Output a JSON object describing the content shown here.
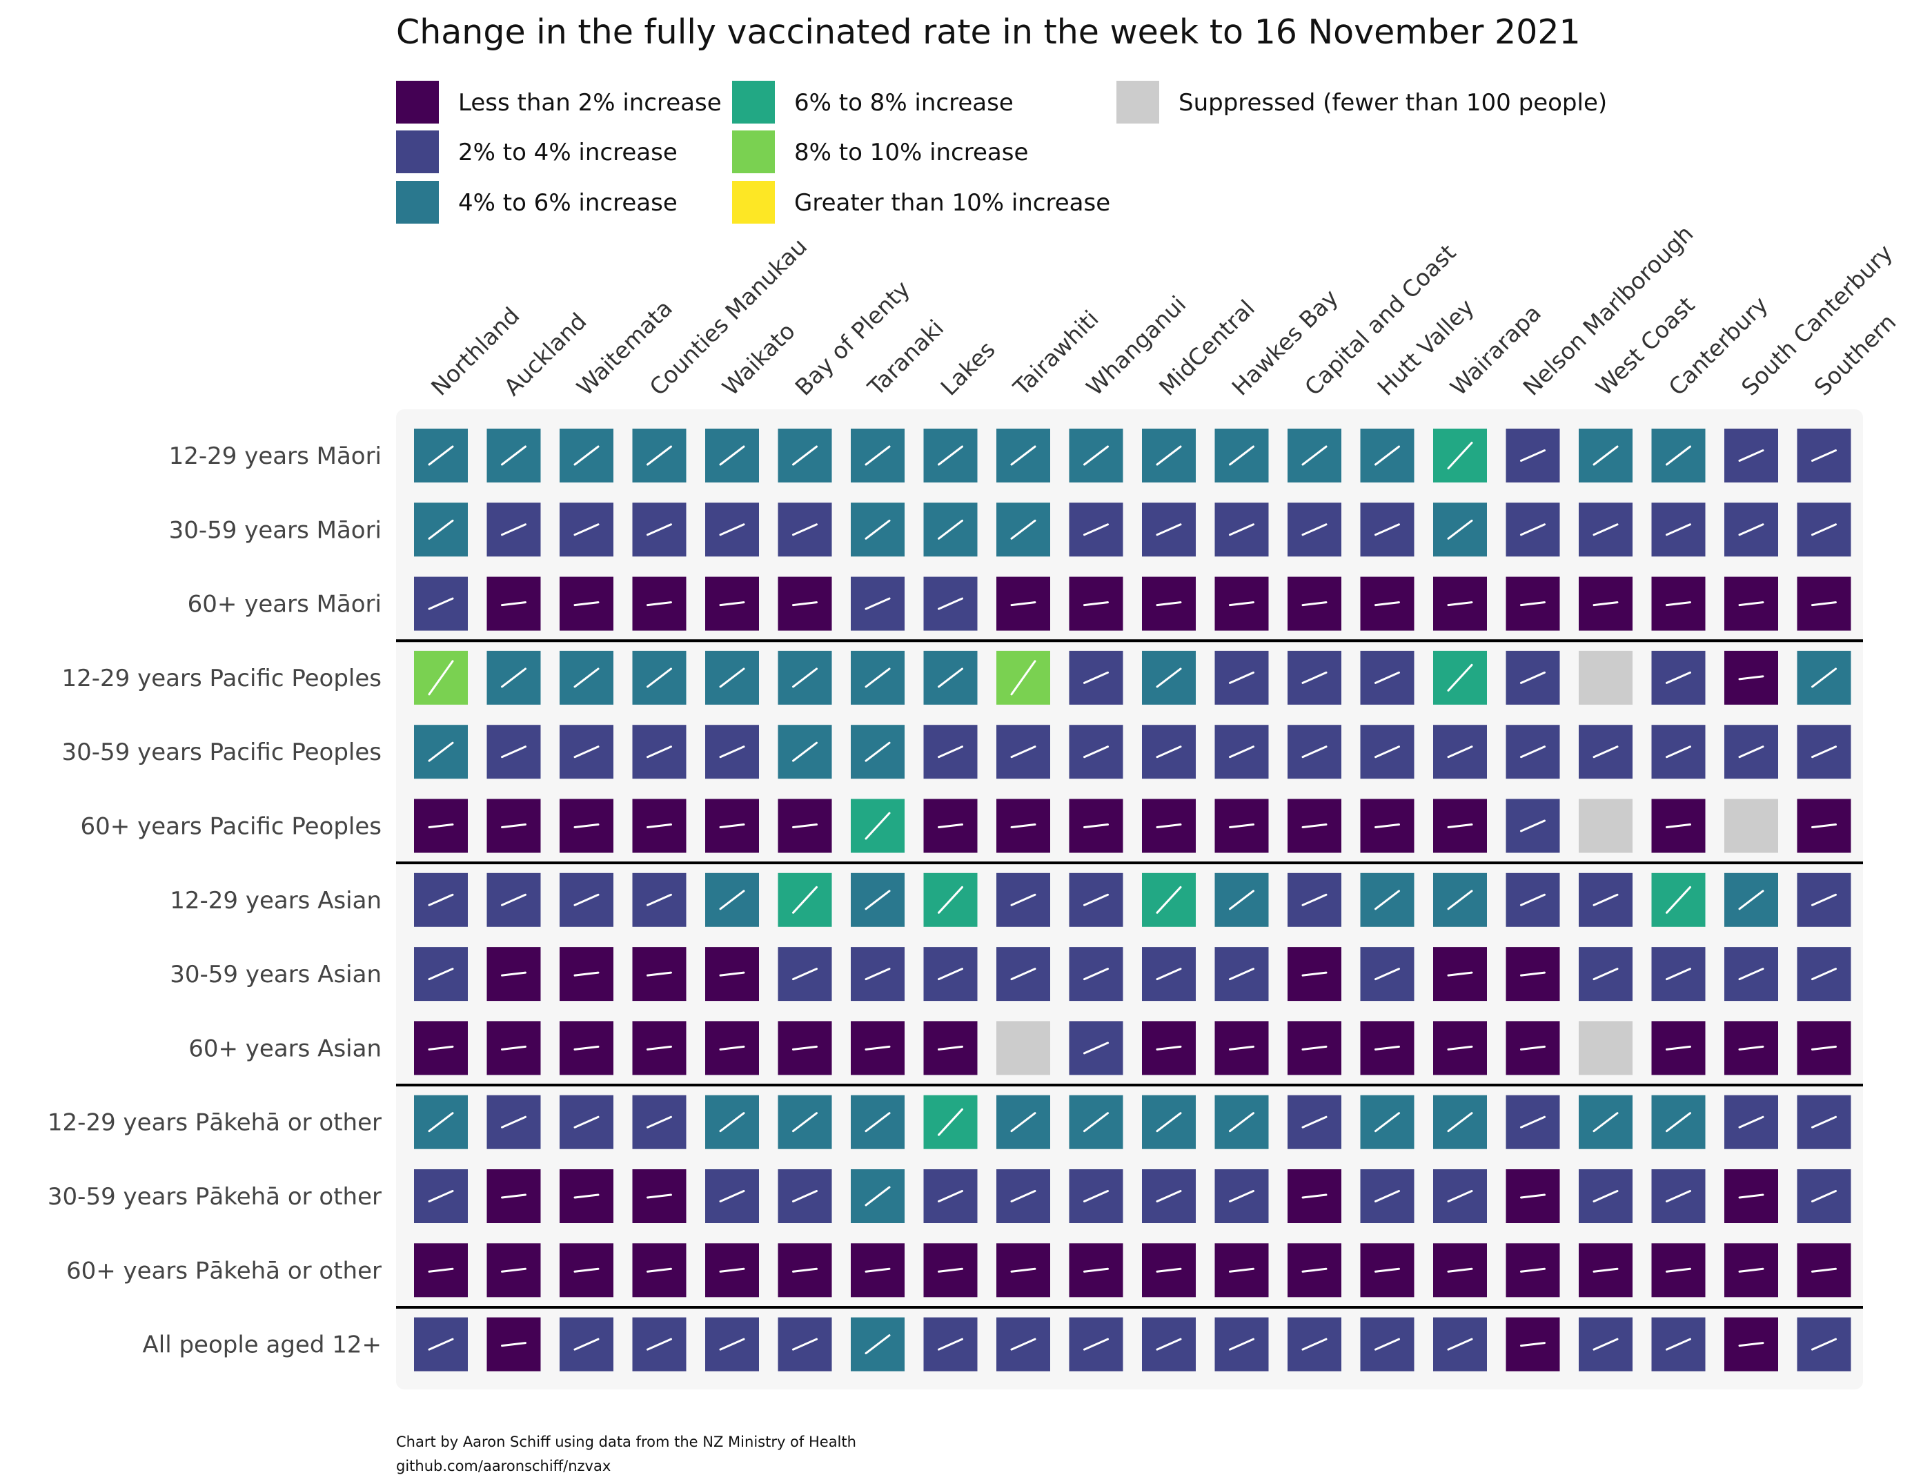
{
  "chart_data": {
    "type": "heatmap",
    "title": "Change in the fully vaccinated rate in the week to 16 November 2021",
    "legend": [
      {
        "code": 0,
        "label": "Less than 2% increase",
        "color": "#440154"
      },
      {
        "code": 1,
        "label": "2% to 4% increase",
        "color": "#414487"
      },
      {
        "code": 2,
        "label": "4% to 6% increase",
        "color": "#2a788e"
      },
      {
        "code": 3,
        "label": "6% to 8% increase",
        "color": "#22a884"
      },
      {
        "code": 4,
        "label": "8% to 10% increase",
        "color": "#7ad151"
      },
      {
        "code": 5,
        "label": "Greater than 10% increase",
        "color": "#fde725"
      },
      {
        "code": "S",
        "label": "Suppressed (fewer than 100 people)",
        "color": "#cccccc"
      }
    ],
    "columns": [
      "Northland",
      "Auckland",
      "Waitemata",
      "Counties Manukau",
      "Waikato",
      "Bay of Plenty",
      "Taranaki",
      "Lakes",
      "Tairawhiti",
      "Whanganui",
      "MidCentral",
      "Hawkes Bay",
      "Capital and Coast",
      "Hutt Valley",
      "Wairarapa",
      "Nelson Marlborough",
      "West Coast",
      "Canterbury",
      "South Canterbury",
      "Southern"
    ],
    "rows": [
      "12-29 years Māori",
      "30-59 years Māori",
      "60+ years Māori",
      "12-29 years Pacific Peoples",
      "30-59 years Pacific Peoples",
      "60+ years Pacific Peoples",
      "12-29 years Asian",
      "30-59 years Asian",
      "60+ years Asian",
      "12-29 years Pākehā or other",
      "30-59 years Pākehā or other",
      "60+ years Pākehā or other",
      "All people aged 12+"
    ],
    "values": [
      [
        2,
        2,
        2,
        2,
        2,
        2,
        2,
        2,
        2,
        2,
        2,
        2,
        2,
        2,
        3,
        1,
        2,
        2,
        1,
        1
      ],
      [
        2,
        1,
        1,
        1,
        1,
        1,
        2,
        2,
        2,
        1,
        1,
        1,
        1,
        1,
        2,
        1,
        1,
        1,
        1,
        1
      ],
      [
        1,
        0,
        0,
        0,
        0,
        0,
        1,
        1,
        0,
        0,
        0,
        0,
        0,
        0,
        0,
        0,
        0,
        0,
        0,
        0
      ],
      [
        4,
        2,
        2,
        2,
        2,
        2,
        2,
        2,
        4,
        1,
        2,
        1,
        1,
        1,
        3,
        1,
        "S",
        1,
        0,
        2
      ],
      [
        2,
        1,
        1,
        1,
        1,
        2,
        2,
        1,
        1,
        1,
        1,
        1,
        1,
        1,
        1,
        1,
        1,
        1,
        1,
        1
      ],
      [
        0,
        0,
        0,
        0,
        0,
        0,
        3,
        0,
        0,
        0,
        0,
        0,
        0,
        0,
        0,
        1,
        "S",
        0,
        "S",
        0
      ],
      [
        1,
        1,
        1,
        1,
        2,
        3,
        2,
        3,
        1,
        1,
        3,
        2,
        1,
        2,
        2,
        1,
        1,
        3,
        2,
        1
      ],
      [
        1,
        0,
        0,
        0,
        0,
        1,
        1,
        1,
        1,
        1,
        1,
        1,
        0,
        1,
        0,
        0,
        1,
        1,
        1,
        1
      ],
      [
        0,
        0,
        0,
        0,
        0,
        0,
        0,
        0,
        "S",
        1,
        0,
        0,
        0,
        0,
        0,
        0,
        "S",
        0,
        0,
        0
      ],
      [
        2,
        1,
        1,
        1,
        2,
        2,
        2,
        3,
        2,
        2,
        2,
        2,
        1,
        2,
        2,
        1,
        2,
        2,
        1,
        1
      ],
      [
        1,
        0,
        0,
        0,
        1,
        1,
        2,
        1,
        1,
        1,
        1,
        1,
        0,
        1,
        1,
        0,
        1,
        1,
        0,
        1
      ],
      [
        0,
        0,
        0,
        0,
        0,
        0,
        0,
        0,
        0,
        0,
        0,
        0,
        0,
        0,
        0,
        0,
        0,
        0,
        0,
        0
      ],
      [
        1,
        0,
        1,
        1,
        1,
        1,
        2,
        1,
        1,
        1,
        1,
        1,
        1,
        1,
        1,
        0,
        1,
        1,
        0,
        1
      ]
    ],
    "group_separators_after_rows": [
      3,
      6,
      9,
      12
    ]
  },
  "caption": {
    "line1": "Chart by Aaron Schiff using data from the NZ Ministry of Health",
    "line2": "github.com/aaronschiff/nzvax"
  }
}
